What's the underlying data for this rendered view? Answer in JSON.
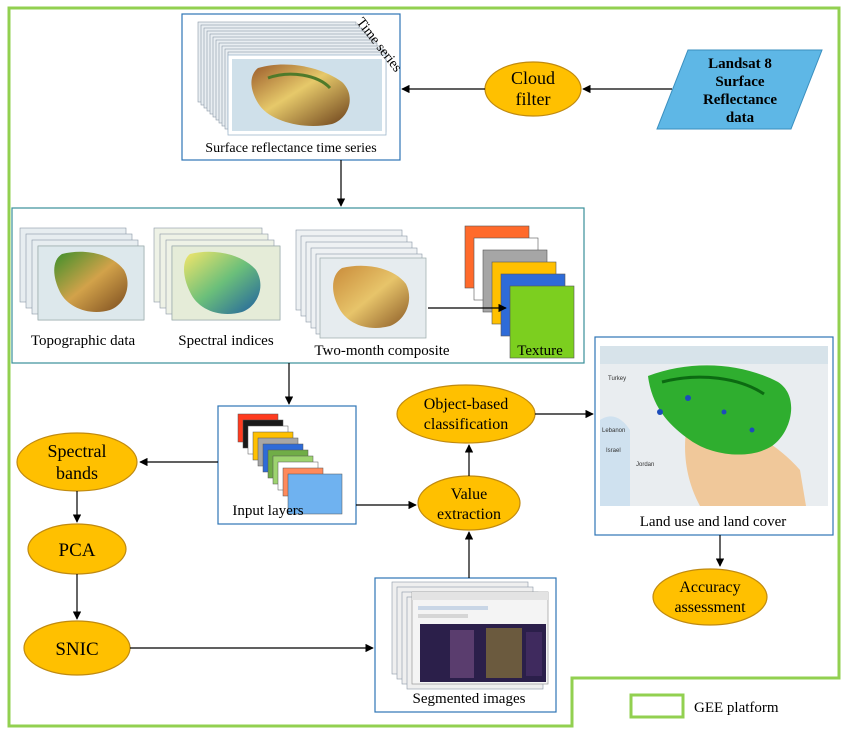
{
  "nodes": {
    "landsat": [
      "Landsat 8",
      "Surface",
      "Reflectance",
      "data"
    ],
    "cloud_filter": [
      "Cloud",
      "filter"
    ],
    "time_series_tag": "Time series",
    "surface_ts": "Surface reflectance time series",
    "topographic": "Topographic data",
    "spectral_indices": "Spectral indices",
    "two_month": "Two-month composite",
    "texture": "Texture",
    "input_layers": "Input layers",
    "spectral_bands": [
      "Spectral",
      "bands"
    ],
    "pca": "PCA",
    "snic": "SNIC",
    "value_extraction": [
      "Value",
      "extraction"
    ],
    "object_based": [
      "Object-based",
      "classification"
    ],
    "segmented": "Segmented  images",
    "lulc": "Land use and land cover",
    "accuracy": [
      "Accuracy",
      "assessment"
    ],
    "gee_legend": "GEE platform"
  },
  "map_labels": [
    "Turkey",
    "Lebanon",
    "Israel",
    "Jordan"
  ],
  "colors": {
    "gee_border": "#92d050",
    "oval_fill": "#ffc000",
    "oval_stroke": "#c08a10",
    "parallelogram_fill": "#5eb7e6",
    "box_stroke": "#2e75b6"
  },
  "texture_layers": [
    "#ff6a2b",
    "#ffffff",
    "#a6a6a6",
    "#ffc000",
    "#2e6bd8",
    "#7ccf1f"
  ],
  "input_layers_colors": [
    "#ff3b1f",
    "#1a1a1a",
    "#ffffff",
    "#ffc000",
    "#a6a6a6",
    "#2e6bd8",
    "#70ad47",
    "#9dd36f",
    "#ffffff",
    "#ff8a5b",
    "#6fb2f0"
  ]
}
